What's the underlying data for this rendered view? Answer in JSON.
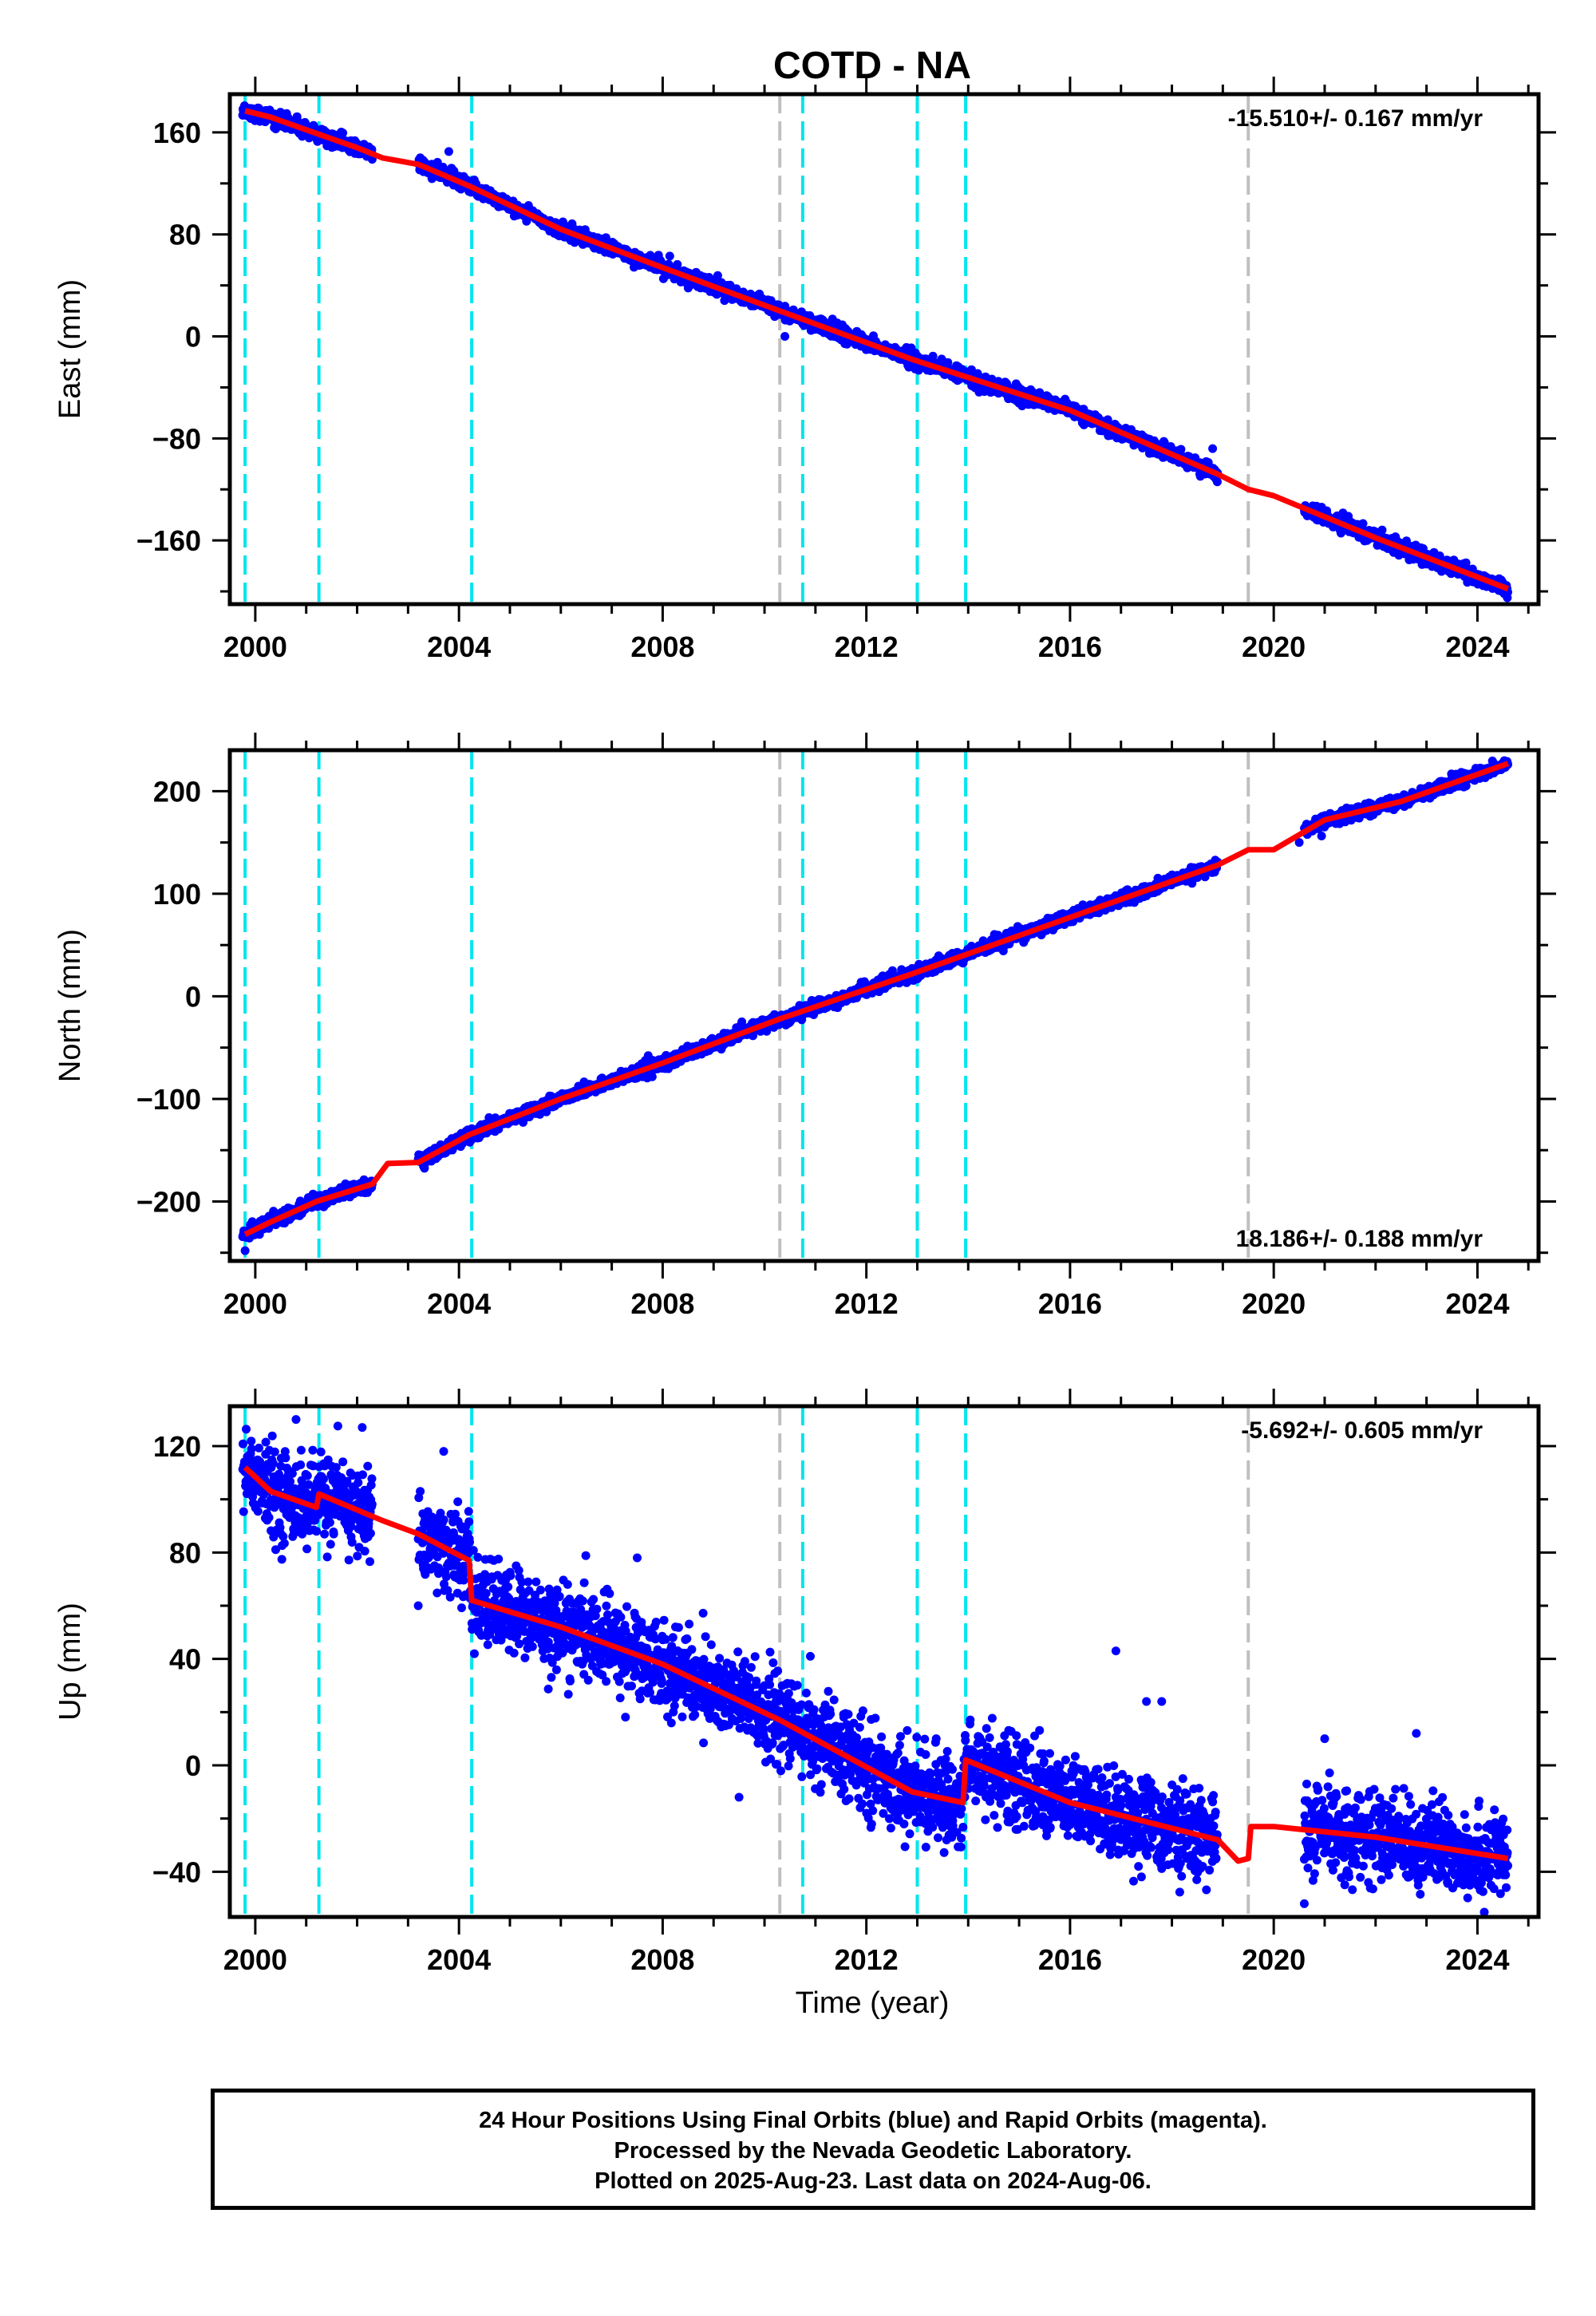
{
  "title": "COTD - NA",
  "xlabel": "Time (year)",
  "footer": {
    "line1": "24 Hour Positions Using Final Orbits (blue) and Rapid Orbits (magenta).",
    "line2": "Processed by the Nevada Geodetic Laboratory.",
    "line3": "Plotted on 2025-Aug-23. Last data on 2024-Aug-06."
  },
  "colors": {
    "data_points": "#0000ff",
    "model_line": "#ff0000",
    "equipment_change": "#00e5ee",
    "other_event": "#c0c0c0"
  },
  "chart_data": [
    {
      "type": "scatter",
      "ylabel": "East (mm)",
      "xlim": [
        1999.5,
        2025.2
      ],
      "ylim": [
        -210,
        190
      ],
      "xticks": [
        "2000",
        "2004",
        "2008",
        "2012",
        "2016",
        "2020",
        "2024"
      ],
      "yticks": [
        "160",
        "80",
        "0",
        "−80",
        "−160"
      ],
      "rate_label": "-15.510+/- 0.167 mm/yr",
      "rate_position": "top-right",
      "grid": false,
      "model": {
        "x": [
          1999.8,
          2000.3,
          2001.0,
          2002.0,
          2002.5,
          2003.2,
          2004.2,
          2006,
          2008,
          2010.3,
          2012.9,
          2016,
          2018.9,
          2019.5,
          2020,
          2022,
          2024.6
        ],
        "y": [
          177,
          172,
          162,
          148,
          140,
          135,
          118,
          84,
          54,
          20,
          -18,
          -58,
          -108,
          -120,
          -125,
          -158,
          -198
        ]
      },
      "data_segments": [
        [
          1999.75,
          2002.3,
          2.6
        ],
        [
          2003.2,
          2018.9,
          2.6
        ],
        [
          2020.6,
          2024.6,
          2.6
        ]
      ],
      "outliers": {
        "x": [
          2003.8,
          2010.4,
          2018.8
        ],
        "y": [
          145,
          0,
          -88
        ]
      }
    },
    {
      "type": "scatter",
      "ylabel": "North (mm)",
      "xlim": [
        1999.5,
        2025.2
      ],
      "ylim": [
        -258,
        240
      ],
      "xticks": [
        "2000",
        "2004",
        "2008",
        "2012",
        "2016",
        "2020",
        "2024"
      ],
      "yticks": [
        "200",
        "100",
        "0",
        "−100",
        "−200"
      ],
      "rate_label": "18.186+/- 0.188 mm/yr",
      "rate_position": "bottom-right",
      "grid": false,
      "model": {
        "x": [
          1999.8,
          2000.3,
          2001.2,
          2002.3,
          2002.6,
          2003.2,
          2004.2,
          2006,
          2008,
          2010.3,
          2012.9,
          2016,
          2018.9,
          2019.5,
          2020,
          2021,
          2022.5,
          2024.6
        ],
        "y": [
          -232,
          -220,
          -200,
          -183,
          -163,
          -162,
          -135,
          -100,
          -65,
          -22,
          22,
          77,
          128,
          143,
          143,
          172,
          190,
          227
        ]
      },
      "data_segments": [
        [
          1999.75,
          2002.3,
          2.8
        ],
        [
          2003.2,
          2018.9,
          2.8
        ],
        [
          2020.6,
          2024.6,
          2.8
        ]
      ],
      "outliers": {
        "x": [
          1999.8,
          2020.5
        ],
        "y": [
          -248,
          150
        ]
      }
    },
    {
      "type": "scatter",
      "ylabel": "Up (mm)",
      "xlim": [
        1999.5,
        2025.2
      ],
      "ylim": [
        -57,
        135
      ],
      "xticks": [
        "2000",
        "2004",
        "2008",
        "2012",
        "2016",
        "2020",
        "2024"
      ],
      "yticks": [
        "120",
        "80",
        "40",
        "0",
        "−40"
      ],
      "rate_label": "-5.692+/- 0.605 mm/yr",
      "rate_position": "top-right",
      "grid": false,
      "model": {
        "x": [
          1999.8,
          2000.3,
          2001.2,
          2001.25,
          2002.5,
          2003.2,
          2004.2,
          2004.25,
          2006,
          2008,
          2010.3,
          2012.9,
          2013.9,
          2013.95,
          2016,
          2018.9,
          2019.3,
          2019.5,
          2019.55,
          2020,
          2020.5,
          2022,
          2024.6
        ],
        "y": [
          112,
          103,
          97,
          102,
          92,
          87,
          77,
          62,
          52,
          38,
          17,
          -10,
          -14,
          2,
          -14,
          -28,
          -36,
          -35,
          -23,
          -23,
          -24,
          -27,
          -35
        ]
      },
      "data_segments": [
        [
          1999.75,
          2002.3,
          8.0
        ],
        [
          2003.2,
          2018.9,
          8.0
        ],
        [
          2020.6,
          2024.6,
          8.0
        ]
      ],
      "outliers": {
        "x": [
          2000.8,
          2002.1,
          2003.2,
          2003.7,
          2007.5,
          2009.5,
          2010.9,
          2016.9,
          2017.5,
          2017.8,
          2021.0,
          2022.8,
          2020.6
        ],
        "y": [
          130,
          127,
          60,
          118,
          78,
          -12,
          41,
          43,
          24,
          24,
          10,
          12,
          -52
        ]
      }
    }
  ],
  "events": {
    "equipment": [
      1999.8,
      2001.25,
      2004.25,
      2010.75,
      2013.0,
      2013.95
    ],
    "other": [
      2010.3,
      2019.5
    ]
  }
}
